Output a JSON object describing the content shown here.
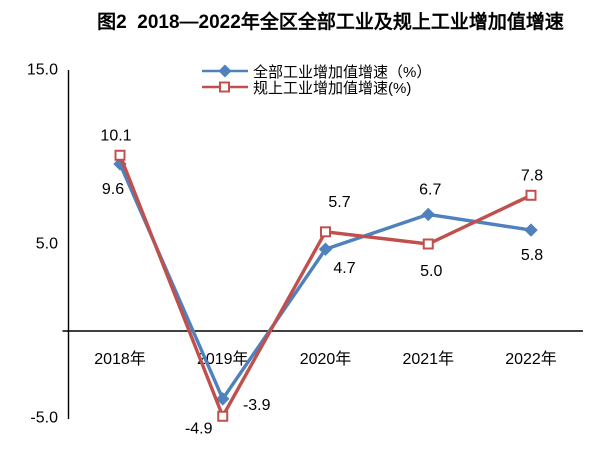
{
  "chart_data": {
    "type": "line",
    "title": "图2  2018—2022年全区全部工业及规上工业增加值增速",
    "categories": [
      "2018年",
      "2019年",
      "2020年",
      "2021年",
      "2022年"
    ],
    "series": [
      {
        "name": "全部工业增加值增速（%）",
        "values": [
          9.6,
          -3.9,
          4.7,
          6.7,
          5.8
        ],
        "color": "#4F81BD",
        "marker": "diamond",
        "label_offsets": [
          [
            -7,
            30
          ],
          [
            34,
            11
          ],
          [
            19,
            24
          ],
          [
            2,
            -20
          ],
          [
            1,
            30
          ]
        ]
      },
      {
        "name": "规上工业增加值增速(%)",
        "values": [
          10.1,
          -4.9,
          5.7,
          5.0,
          7.8
        ],
        "color": "#C0504D",
        "marker": "open-square",
        "label_offsets": [
          [
            -4,
            -15
          ],
          [
            -24,
            17
          ],
          [
            14,
            -25
          ],
          [
            3,
            32
          ],
          [
            1,
            -15
          ]
        ]
      }
    ],
    "ylim": [
      -5,
      15
    ],
    "yticks": [
      "15.0",
      "5.0",
      "-5.0"
    ],
    "ytick_values": [
      15,
      5,
      -5
    ],
    "xlabel": "",
    "ylabel": "",
    "grid": false,
    "legend_position": "top-center",
    "axis_color": "#000000",
    "text_color": "#000000",
    "background": "#FFFFFF"
  }
}
